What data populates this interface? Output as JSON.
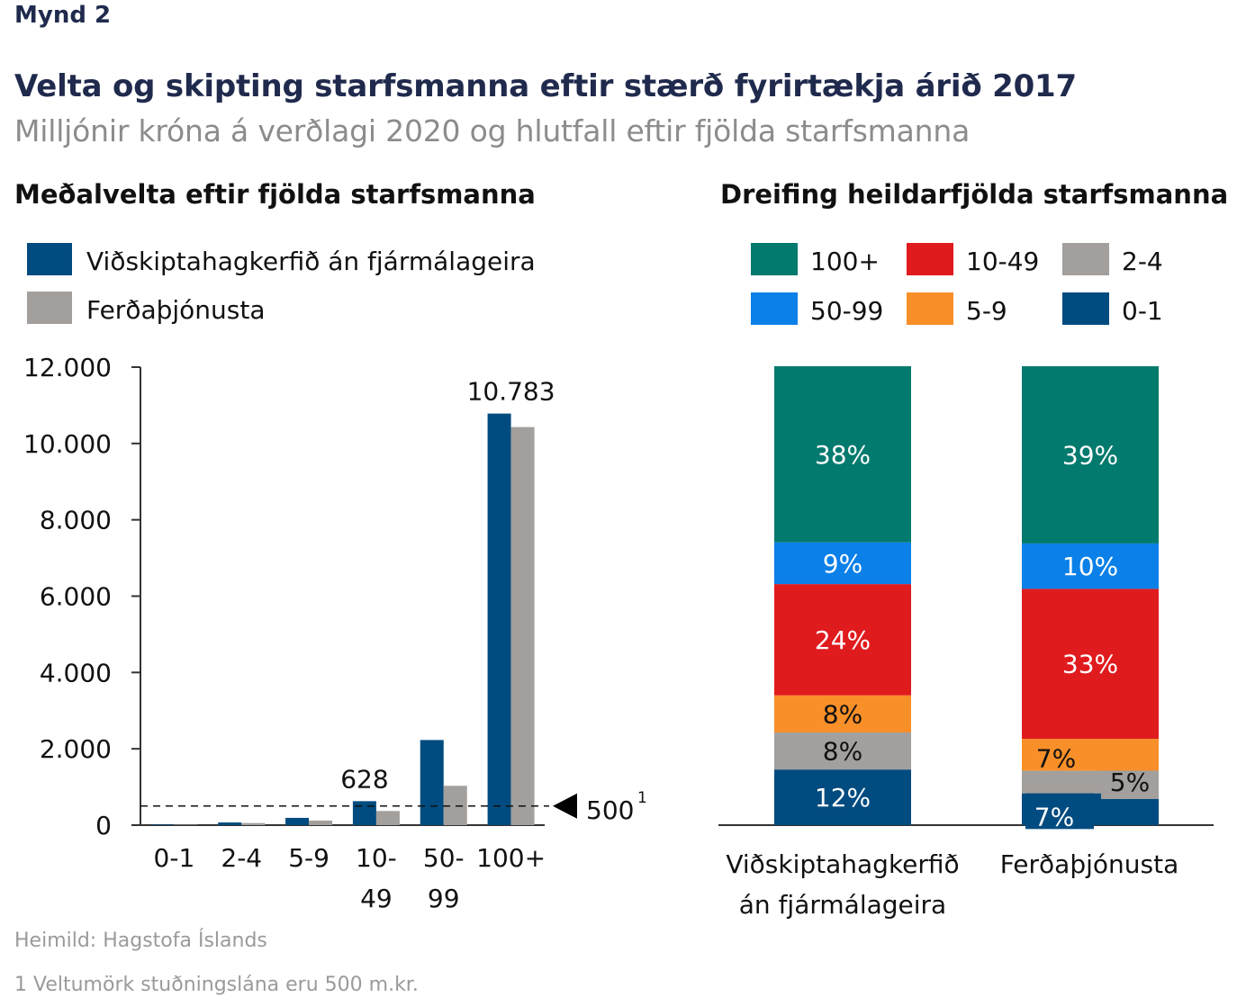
{
  "figure_label": "Mynd 2",
  "title": "Velta og skipting starfsmanna eftir stærð fyrirtækja árið 2017",
  "subtitle": "Milljónir króna á verðlagi 2020 og hlutfall eftir fjölda starfsmanna",
  "source": "Heimild: Hagstofa Íslands",
  "footnote": "1 Veltumörk stuðningslána eru 500 m.kr.",
  "colors": {
    "navy": "#004b7f",
    "gray": "#a39f9c",
    "teal": "#027a6d",
    "blue": "#0a80e8",
    "red": "#e01b1e",
    "orange": "#f98f28",
    "text": "#1f2a4d"
  },
  "chart_data": [
    {
      "type": "bar",
      "title": "Meðalvelta eftir fjölda starfsmanna",
      "categories": [
        "0-1",
        "2-4",
        "5-9",
        "10-49",
        "50-99",
        "100+"
      ],
      "category_lines": [
        [
          "0-1"
        ],
        [
          "2-4"
        ],
        [
          "5-9"
        ],
        [
          "10-",
          "49"
        ],
        [
          "50-",
          "99"
        ],
        [
          "100+"
        ]
      ],
      "series": [
        {
          "name": "Viðskiptahagkerfið án fjármálageira",
          "color": "#004b7f",
          "values": [
            15,
            70,
            190,
            628,
            2230,
            10783
          ]
        },
        {
          "name": "Ferðaþjónusta",
          "color": "#a39f9c",
          "values": [
            10,
            55,
            120,
            370,
            1030,
            10430
          ]
        }
      ],
      "data_labels": [
        {
          "category": "10-49",
          "series": 0,
          "text": "628"
        },
        {
          "category": "100+",
          "series": 0,
          "text": "10.783"
        }
      ],
      "ylim": [
        0,
        12000
      ],
      "yticks": [
        0,
        2000,
        4000,
        6000,
        8000,
        10000,
        12000
      ],
      "ytick_labels": [
        "0",
        "2.000",
        "4.000",
        "6.000",
        "8.000",
        "10.000",
        "12.000"
      ],
      "reference_line": {
        "value": 500,
        "label": "500",
        "superscript": "1"
      },
      "legend_placement": "top-left"
    },
    {
      "type": "bar",
      "stacked": true,
      "percent": true,
      "title": "Dreifing heildarfjölda starfsmanna",
      "categories": [
        "Viðskiptahagkerfið án fjármálageira",
        "Ferðaþjónusta"
      ],
      "category_lines": [
        [
          "Viðskiptahagkerfið",
          "án fjármálageira"
        ],
        [
          "Ferðaþjónusta"
        ]
      ],
      "legend_order": [
        "100+",
        "10-49",
        "2-4",
        "50-99",
        "5-9",
        "0-1"
      ],
      "series": [
        {
          "name": "0-1",
          "color": "#004b7f",
          "values": [
            12,
            7
          ],
          "labels": [
            "12%",
            "7%"
          ]
        },
        {
          "name": "2-4",
          "color": "#a39f9c",
          "values": [
            8,
            5
          ],
          "labels": [
            "8%",
            "5%"
          ]
        },
        {
          "name": "5-9",
          "color": "#f98f28",
          "values": [
            8,
            7
          ],
          "labels": [
            "8%",
            "7%"
          ]
        },
        {
          "name": "10-49",
          "color": "#e01b1e",
          "values": [
            24,
            33
          ],
          "labels": [
            "24%",
            "33%"
          ]
        },
        {
          "name": "50-99",
          "color": "#0a80e8",
          "values": [
            9,
            10
          ],
          "labels": [
            "9%",
            "10%"
          ]
        },
        {
          "name": "100+",
          "color": "#027a6d",
          "values": [
            38,
            39
          ],
          "labels": [
            "38%",
            "39%"
          ]
        }
      ],
      "legend_placement": "top"
    }
  ]
}
